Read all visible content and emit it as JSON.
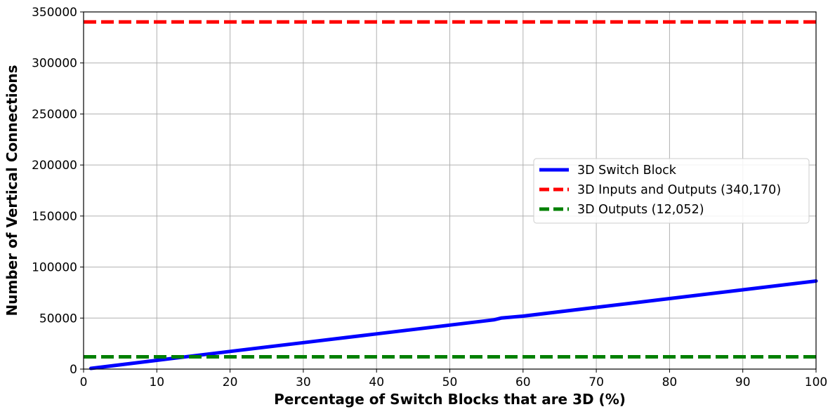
{
  "chart_data": {
    "type": "line",
    "title": "",
    "xlabel": "Percentage of Switch Blocks that are 3D (%)",
    "ylabel": "Number of Vertical Connections",
    "xlim": [
      0,
      100
    ],
    "ylim": [
      0,
      350000
    ],
    "xticks": [
      "0",
      "10",
      "20",
      "30",
      "40",
      "50",
      "60",
      "70",
      "80",
      "90",
      "100"
    ],
    "yticks": [
      "0",
      "50000",
      "100000",
      "150000",
      "200000",
      "250000",
      "300000",
      "350000"
    ],
    "grid": true,
    "legend_position": "center-right",
    "series": [
      {
        "name": "3D Switch Block",
        "style": "solid",
        "color": "#0000ff",
        "x": [
          1,
          10,
          20,
          30,
          40,
          50,
          56,
          57,
          60,
          70,
          80,
          90,
          100
        ],
        "y": [
          700,
          8600,
          17300,
          25900,
          34500,
          43100,
          48300,
          50000,
          51900,
          60500,
          69100,
          77700,
          86300
        ]
      },
      {
        "name": "3D Inputs and Outputs (340,170)",
        "style": "dashed",
        "color": "#ff0000",
        "x": [
          0,
          100
        ],
        "y": [
          340170,
          340170
        ]
      },
      {
        "name": "3D Outputs (12,052)",
        "style": "dashed",
        "color": "#008000",
        "x": [
          0,
          100
        ],
        "y": [
          12052,
          12052
        ]
      }
    ]
  }
}
